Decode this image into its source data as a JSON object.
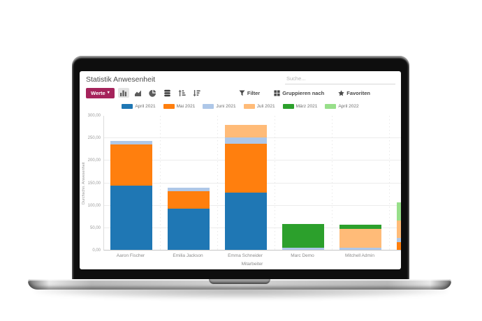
{
  "window": {
    "title": "Statistik Anwesenheit",
    "search": {
      "placeholder": "Suche..."
    }
  },
  "controls": {
    "measures_label": "Werte",
    "filter_label": "Filter",
    "groupby_label": "Gruppieren nach",
    "favorites_label": "Favoriten"
  },
  "colors": {
    "accent": "#a5235b",
    "icon": "#5c5c5c",
    "icon_active": "#3b3b3b"
  },
  "chart_data": {
    "type": "bar",
    "stacked": true,
    "title": "",
    "xlabel": "Mitarbeiter",
    "ylabel": "Durchschn. Anwesenheit",
    "ylim": [
      0,
      300
    ],
    "ytick_step": 50,
    "ytick_labels": [
      "0,00",
      "50,00",
      "100,00",
      "150,00",
      "200,00",
      "250,00",
      "300,00"
    ],
    "grid": true,
    "legend_position": "top",
    "categories": [
      "Aaron Fischer",
      "Emilia Jackson",
      "Emma Schneider",
      "Marc Demo",
      "Mitchell Admin",
      ""
    ],
    "series": [
      {
        "name": "April 2021",
        "color": "#1f77b4",
        "values": [
          143,
          92,
          128,
          0,
          0,
          0
        ]
      },
      {
        "name": "Mai 2021",
        "color": "#ff7f0e",
        "values": [
          91,
          38,
          108,
          0,
          0,
          17
        ]
      },
      {
        "name": "Juni 2021",
        "color": "#aec7e8",
        "values": [
          8,
          8,
          15,
          5,
          5,
          10
        ]
      },
      {
        "name": "Juli 2021",
        "color": "#ffbb78",
        "values": [
          0,
          0,
          28,
          0,
          41,
          39
        ]
      },
      {
        "name": "März 2021",
        "color": "#2ca02c",
        "values": [
          0,
          0,
          0,
          52,
          10,
          0
        ]
      },
      {
        "name": "April 2022",
        "color": "#98df8a",
        "values": [
          0,
          0,
          0,
          0,
          0,
          39
        ]
      }
    ]
  }
}
